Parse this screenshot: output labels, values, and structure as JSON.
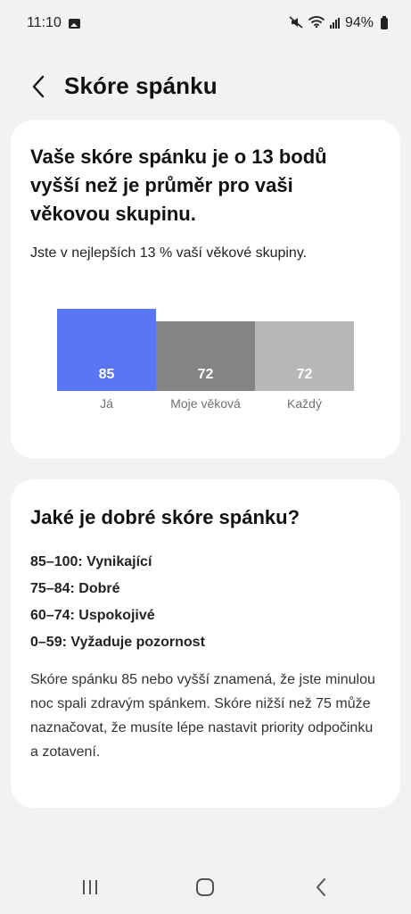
{
  "status_bar": {
    "time": "11:10",
    "battery": "94%",
    "icons": [
      "gallery-icon",
      "mute-icon",
      "wifi-icon",
      "signal-icon",
      "battery-icon"
    ]
  },
  "header": {
    "back_icon": "chevron-left-icon",
    "title": "Skóre spánku"
  },
  "comparison_card": {
    "title": "Vaše skóre spánku je o 13 bodů vyšší než je průměr pro vaši věkovou skupinu.",
    "subtitle": "Jste v nejlepších 13 % vaší věkové skupiny.",
    "chart_data": {
      "type": "bar",
      "categories": [
        "Já",
        "Moje věková",
        "Každý"
      ],
      "values": [
        85,
        72,
        72
      ],
      "labels": [
        "85",
        "72",
        "72"
      ],
      "colors": [
        "#5b76f2",
        "#848484",
        "#b7b7b7"
      ],
      "ylim": [
        0,
        100
      ]
    }
  },
  "info_card": {
    "title": "Jaké je dobré skóre spánku?",
    "ranges": [
      "85–100: Vynikající",
      "75–84: Dobré",
      "60–74: Uspokojivé",
      "0–59: Vyžaduje pozornost"
    ],
    "paragraph": "Skóre spánku 85 nebo vyšší znamená, že jste minulou noc spali zdravým spánkem. Skóre nižší než 75 může naznačovat, že musíte lépe nastavit priority odpočinku a zotavení."
  },
  "nav_bar": {
    "icons": [
      "recents-icon",
      "home-icon",
      "back-icon"
    ]
  }
}
